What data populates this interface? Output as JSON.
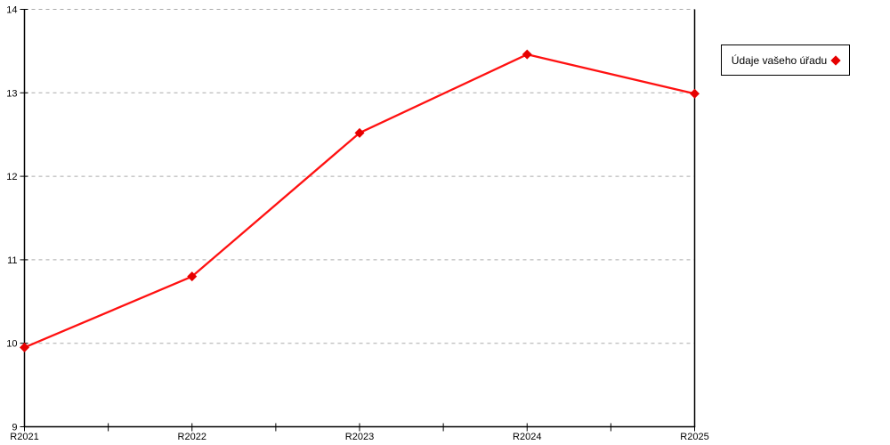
{
  "chart_data": {
    "type": "line",
    "categories": [
      "R2021",
      "R2022",
      "R2023",
      "R2024",
      "R2025"
    ],
    "series": [
      {
        "name": "Údaje vašeho úřadu",
        "values": [
          9.95,
          10.8,
          12.52,
          13.46,
          12.99
        ],
        "color": "#ff1111",
        "marker": "diamond",
        "marker_color": "#e60000"
      }
    ],
    "title": "",
    "xlabel": "",
    "ylabel": "",
    "ylim": [
      9,
      14
    ],
    "yticks": [
      9,
      10,
      11,
      12,
      13,
      14
    ],
    "grid": "horizontal-dashed",
    "legend_position": "right-outside"
  },
  "colors": {
    "background": "#ffffff",
    "axis": "#000000",
    "grid": "#aaaaaa",
    "text": "#000000",
    "series_line": "#ff1111",
    "series_marker": "#e60000"
  }
}
